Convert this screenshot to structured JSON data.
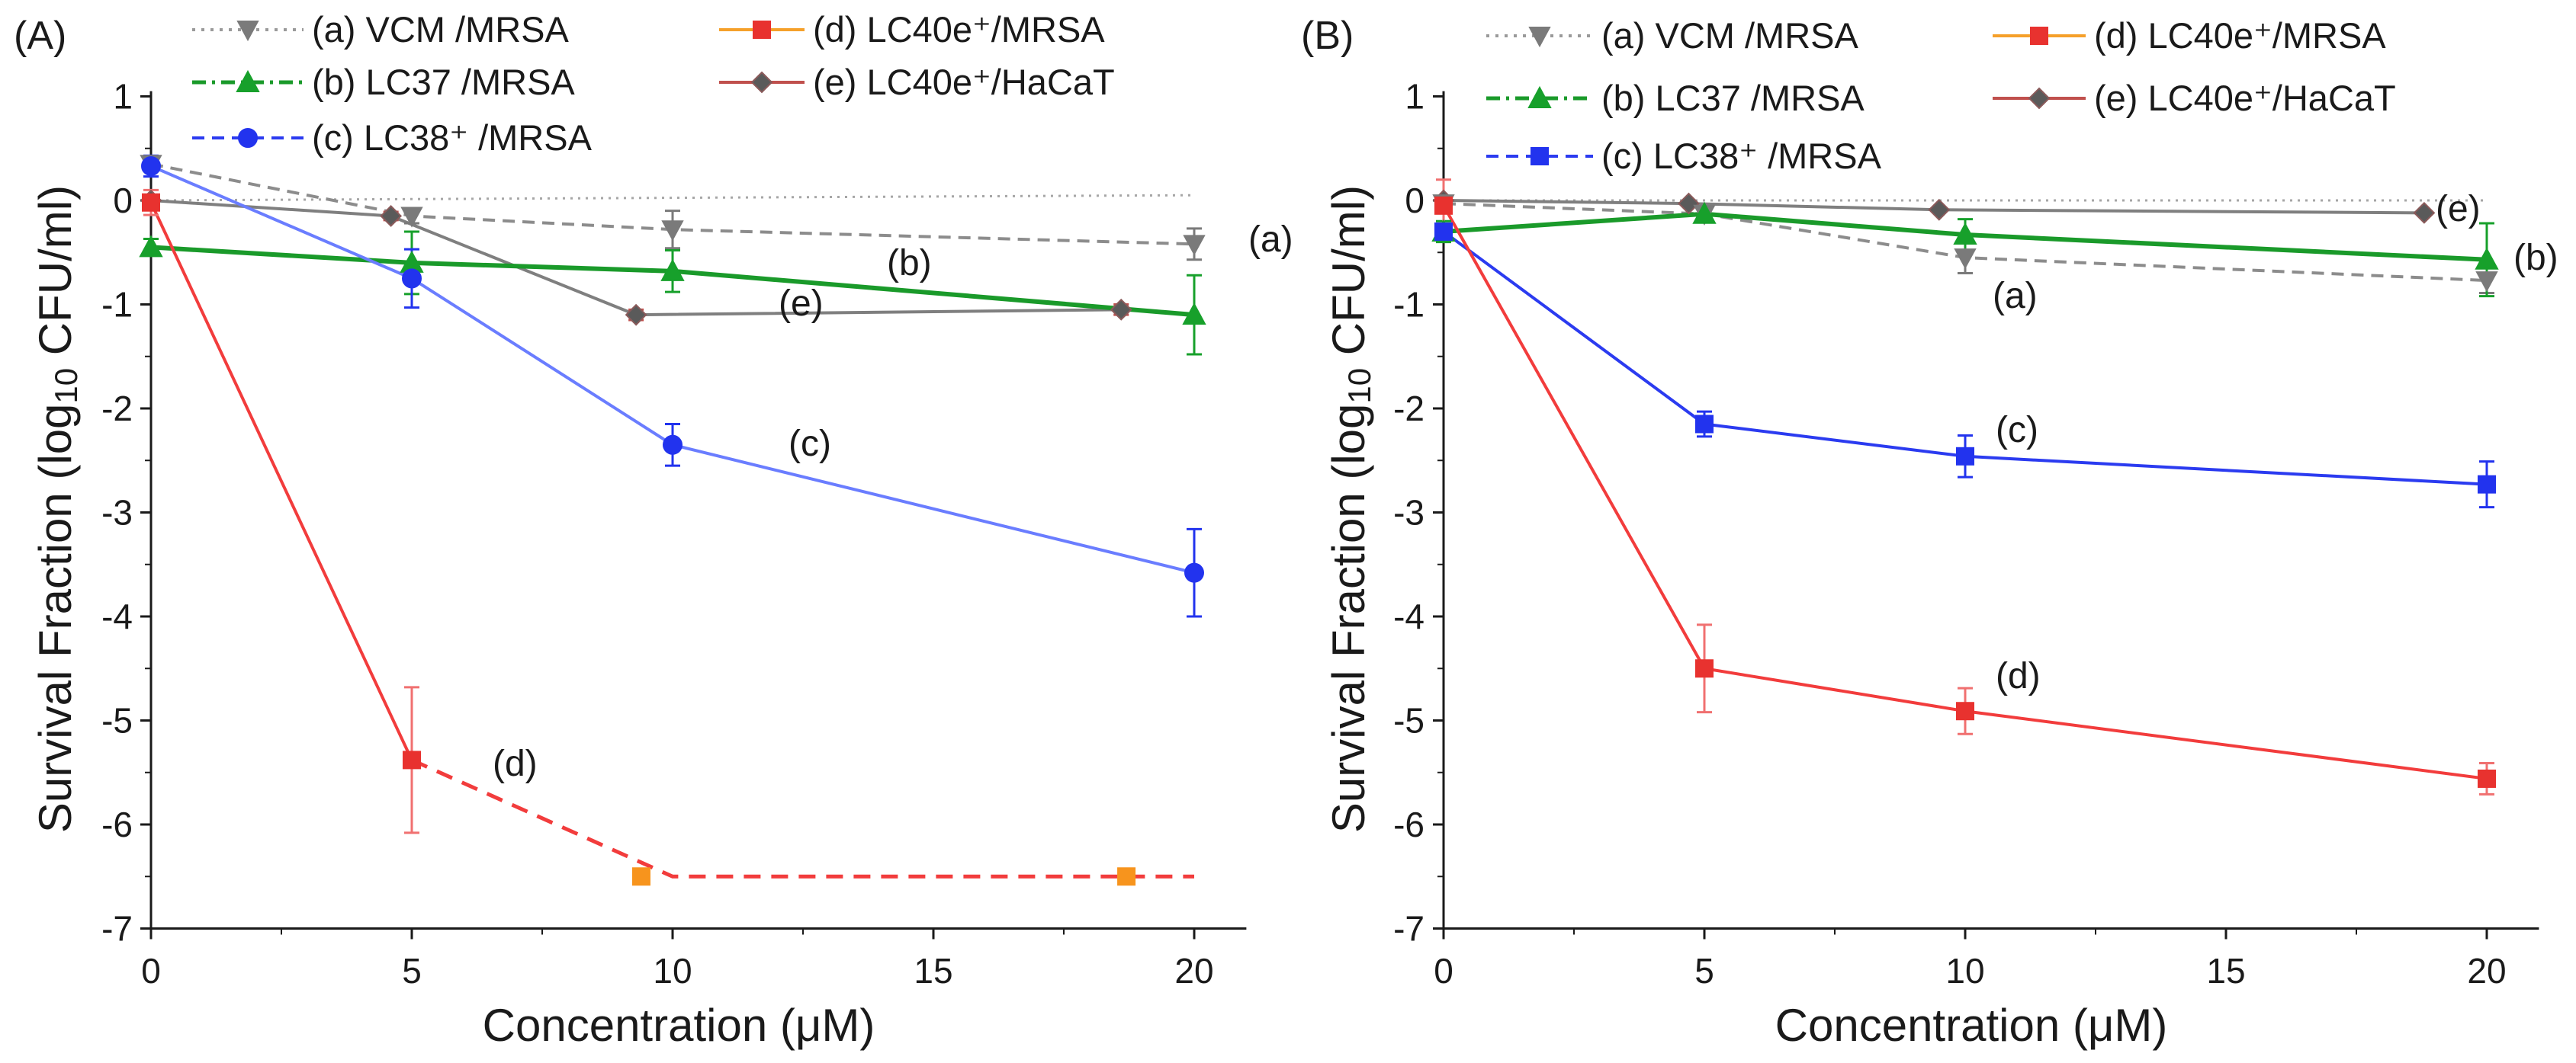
{
  "chart_data": [
    {
      "type": "line",
      "panel_label": "(A)",
      "xlabel": "Concentration (μM)",
      "ylabel": {
        "pre": "Survival Fraction (log",
        "sub": "10",
        "post": " CFU/ml)"
      },
      "xlim": [
        0,
        21
      ],
      "ylim": [
        -7,
        1.05
      ],
      "xticks": [
        0,
        5,
        10,
        15,
        20
      ],
      "xtick_labels": [
        "0",
        "5",
        "10",
        "15",
        "20"
      ],
      "yticks": [
        1,
        0,
        -1,
        -2,
        -3,
        -4,
        -5,
        -6,
        -7
      ],
      "ytick_labels": [
        "1",
        "0",
        "-1",
        "-2",
        "-3",
        "-4",
        "-5",
        "-6",
        "-7"
      ],
      "grid": false,
      "legend": "top",
      "series": [
        {
          "key": "a",
          "name": "(a) VCM /MRSA",
          "line_color": "#8c8c8c",
          "marker_color": "#7a7a7a",
          "legend_line_color": "#9a9a9a",
          "marker": "triangle-down",
          "x": [
            0,
            5,
            10,
            20
          ],
          "y": [
            0.35,
            -0.15,
            -0.28,
            -0.42
          ],
          "err": [
            0.04,
            0.07,
            0.18,
            0.15
          ],
          "baseline": {
            "x": [
              0,
              20
            ],
            "y": [
              0.0,
              0.05
            ]
          }
        },
        {
          "key": "b",
          "name": "(b) LC37 /MRSA",
          "line_color": "#1a9a2a",
          "marker_color": "#17a02b",
          "legend_line_color": "#1a9a2a",
          "marker": "triangle-up",
          "x": [
            0,
            5,
            10,
            20
          ],
          "y": [
            -0.45,
            -0.6,
            -0.68,
            -1.1
          ],
          "err": [
            0.08,
            0.3,
            0.2,
            0.38
          ]
        },
        {
          "key": "c",
          "name": "(c) LC38⁺ /MRSA",
          "line_color": "#6a7dff",
          "marker_color": "#2233ee",
          "legend_line_color": "#2b3bf0",
          "marker": "circle",
          "x": [
            0,
            5,
            10,
            20
          ],
          "y": [
            0.33,
            -0.75,
            -2.35,
            -3.58
          ],
          "err": [
            0.1,
            0.28,
            0.2,
            0.42
          ]
        },
        {
          "key": "d",
          "name": "(d) LC40e⁺/MRSA",
          "line_color": "#f23c3c",
          "marker_color": "#e8322f",
          "legend_line_color": "#f5a02a",
          "marker": "square",
          "x": [
            0,
            5
          ],
          "y": [
            -0.02,
            -5.38
          ],
          "err": [
            0.12,
            0.7
          ],
          "extension": {
            "x": [
              5,
              10,
              20
            ],
            "y": [
              -5.38,
              -6.5,
              -6.5
            ]
          },
          "extra_markers": {
            "x": [
              9.4,
              18.7
            ],
            "y": [
              -6.5,
              -6.5
            ],
            "color": "#f7941d"
          }
        },
        {
          "key": "e",
          "name": "(e) LC40e⁺/HaCaT",
          "line_color": "#7f7f7f",
          "marker_color": "#5a5a5a",
          "legend_line_color": "#c0504d",
          "marker": "diamond",
          "x": [
            0,
            4.6,
            9.3,
            18.6
          ],
          "y": [
            0.0,
            -0.15,
            -1.1,
            -1.05
          ],
          "err": [
            0,
            0.04,
            0.05,
            0.05
          ]
        }
      ],
      "annotations": [
        {
          "key": "a",
          "text": "(a)"
        },
        {
          "key": "b",
          "text": "(b)"
        },
        {
          "key": "e",
          "text": "(e)"
        },
        {
          "key": "c",
          "text": "(c)"
        },
        {
          "key": "d",
          "text": "(d)"
        }
      ]
    },
    {
      "type": "line",
      "panel_label": "(B)",
      "xlabel": "Concentration (μM)",
      "ylabel": {
        "pre": "Survival Fraction (log",
        "sub": "10",
        "post": " CFU/ml)"
      },
      "xlim": [
        0,
        21
      ],
      "ylim": [
        -7,
        1.05
      ],
      "xticks": [
        0,
        5,
        10,
        15,
        20
      ],
      "xtick_labels": [
        "0",
        "5",
        "10",
        "15",
        "20"
      ],
      "yticks": [
        1,
        0,
        -1,
        -2,
        -3,
        -4,
        -5,
        -6,
        -7
      ],
      "ytick_labels": [
        "1",
        "0",
        "-1",
        "-2",
        "-3",
        "-4",
        "-5",
        "-6",
        "-7"
      ],
      "grid": false,
      "legend": "top",
      "series": [
        {
          "key": "a",
          "name": "(a) VCM /MRSA",
          "line_color": "#8c8c8c",
          "marker_color": "#7a7a7a",
          "legend_line_color": "#9a9a9a",
          "marker": "triangle-down",
          "x": [
            0,
            5,
            10,
            20
          ],
          "y": [
            -0.03,
            -0.13,
            -0.55,
            -0.77
          ],
          "err": [
            0.03,
            0.05,
            0.15,
            0.12
          ],
          "baseline": {
            "x": [
              0,
              20
            ],
            "y": [
              0.0,
              0.0
            ]
          }
        },
        {
          "key": "b",
          "name": "(b) LC37 /MRSA",
          "line_color": "#1a9a2a",
          "marker_color": "#17a02b",
          "legend_line_color": "#1a9a2a",
          "marker": "triangle-up",
          "x": [
            0,
            5,
            10,
            20
          ],
          "y": [
            -0.3,
            -0.13,
            -0.33,
            -0.57
          ],
          "err": [
            0.1,
            0.05,
            0.15,
            0.35
          ]
        },
        {
          "key": "c",
          "name": "(c) LC38⁺ /MRSA",
          "line_color": "#2b3bf0",
          "marker_color": "#2233ee",
          "legend_line_color": "#2b3bf0",
          "marker": "square",
          "x": [
            0,
            5,
            10,
            20
          ],
          "y": [
            -0.3,
            -2.15,
            -2.46,
            -2.73
          ],
          "err": [
            0.05,
            0.12,
            0.2,
            0.22
          ]
        },
        {
          "key": "d",
          "name": "(d) LC40e⁺/MRSA",
          "line_color": "#f23c3c",
          "marker_color": "#e8322f",
          "legend_line_color": "#f5a02a",
          "marker": "square",
          "x": [
            0,
            5,
            10,
            20
          ],
          "y": [
            -0.05,
            -4.5,
            -4.91,
            -5.56
          ],
          "err": [
            0.25,
            0.42,
            0.22,
            0.15
          ]
        },
        {
          "key": "e",
          "name": "(e) LC40e⁺/HaCaT",
          "line_color": "#7f7f7f",
          "marker_color": "#5a5a5a",
          "legend_line_color": "#c0504d",
          "marker": "diamond",
          "x": [
            0,
            4.7,
            9.5,
            18.8
          ],
          "y": [
            0.0,
            -0.03,
            -0.09,
            -0.12
          ],
          "err": [
            0,
            0,
            0,
            0
          ]
        }
      ],
      "annotations": [
        {
          "key": "e",
          "text": "(e)"
        },
        {
          "key": "b",
          "text": "(b)"
        },
        {
          "key": "a",
          "text": "(a)"
        },
        {
          "key": "c",
          "text": "(c)"
        },
        {
          "key": "d",
          "text": "(d)"
        }
      ]
    }
  ]
}
